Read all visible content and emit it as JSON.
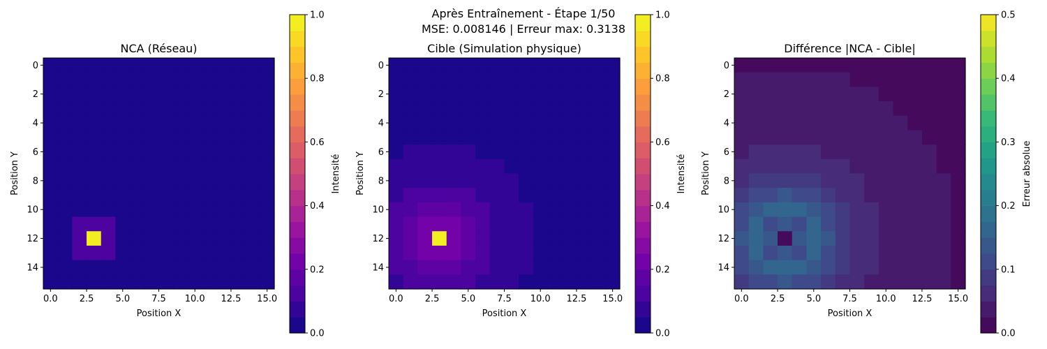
{
  "figure": {
    "title_line1": "Après Entraînement - Étape 1/50",
    "title_line2": "MSE: 0.008146 | Erreur max: 0.3138"
  },
  "chart_data": [
    {
      "type": "heatmap",
      "title": "NCA (Réseau)",
      "xlabel": "Position X",
      "ylabel": "Position Y",
      "grid_size": 16,
      "xticks": [
        0,
        2.5,
        5,
        7.5,
        10,
        12.5,
        15
      ],
      "xtick_labels": [
        "0.0",
        "2.5",
        "5.0",
        "7.5",
        "10.0",
        "12.5",
        "15.0"
      ],
      "yticks": [
        0,
        2,
        4,
        6,
        8,
        10,
        12,
        14
      ],
      "ytick_labels": [
        "0",
        "2",
        "4",
        "6",
        "8",
        "10",
        "12",
        "14"
      ],
      "colormap": "plasma",
      "vmin": 0,
      "vmax": 1,
      "colorbar": {
        "label": "Intensité",
        "ticks": [
          0,
          0.2,
          0.4,
          0.6,
          0.8,
          1.0
        ],
        "tick_labels": [
          "0.0",
          "0.2",
          "0.4",
          "0.6",
          "0.8",
          "1.0"
        ],
        "levels": 20
      },
      "grid": false,
      "field": "nca"
    },
    {
      "type": "heatmap",
      "title": "Cible (Simulation physique)",
      "xlabel": "Position X",
      "ylabel": "Position Y",
      "grid_size": 16,
      "xticks": [
        0,
        2.5,
        5,
        7.5,
        10,
        12.5,
        15
      ],
      "xtick_labels": [
        "0.0",
        "2.5",
        "5.0",
        "7.5",
        "10.0",
        "12.5",
        "15.0"
      ],
      "yticks": [
        0,
        2,
        4,
        6,
        8,
        10,
        12,
        14
      ],
      "ytick_labels": [
        "0",
        "2",
        "4",
        "6",
        "8",
        "10",
        "12",
        "14"
      ],
      "colormap": "plasma",
      "vmin": 0,
      "vmax": 1,
      "colorbar": {
        "label": "Intensité",
        "ticks": [
          0,
          0.2,
          0.4,
          0.6,
          0.8,
          1.0
        ],
        "tick_labels": [
          "0.0",
          "0.2",
          "0.4",
          "0.6",
          "0.8",
          "1.0"
        ],
        "levels": 20
      },
      "grid": false,
      "field": "target"
    },
    {
      "type": "heatmap",
      "title": "Différence |NCA - Cible|",
      "xlabel": "Position X",
      "ylabel": "Position Y",
      "grid_size": 16,
      "xticks": [
        0,
        2.5,
        5,
        7.5,
        10,
        12.5,
        15
      ],
      "xtick_labels": [
        "0.0",
        "2.5",
        "5.0",
        "7.5",
        "10.0",
        "12.5",
        "15.0"
      ],
      "yticks": [
        0,
        2,
        4,
        6,
        8,
        10,
        12,
        14
      ],
      "ytick_labels": [
        "0",
        "2",
        "4",
        "6",
        "8",
        "10",
        "12",
        "14"
      ],
      "colormap": "viridis",
      "vmin": 0,
      "vmax": 0.5,
      "colorbar": {
        "label": "Erreur absolue",
        "ticks": [
          0,
          0.1,
          0.2,
          0.3,
          0.4,
          0.5
        ],
        "tick_labels": [
          "0.0",
          "0.1",
          "0.2",
          "0.3",
          "0.4",
          "0.5"
        ],
        "levels": 20
      },
      "grid": false,
      "field": "diff"
    }
  ],
  "fields": {
    "nca": {
      "background": 0.0,
      "cells": [
        [
          11,
          2,
          0.1
        ],
        [
          11,
          3,
          0.1
        ],
        [
          11,
          4,
          0.1
        ],
        [
          12,
          2,
          0.1
        ],
        [
          12,
          3,
          1.0
        ],
        [
          12,
          4,
          0.1
        ],
        [
          13,
          2,
          0.1
        ],
        [
          13,
          3,
          0.1
        ],
        [
          13,
          4,
          0.1
        ]
      ]
    },
    "target": {
      "source": [
        12,
        3
      ],
      "peak": 1.0,
      "amplitude": 0.3,
      "decay": 2.9,
      "background": 0.02
    }
  }
}
